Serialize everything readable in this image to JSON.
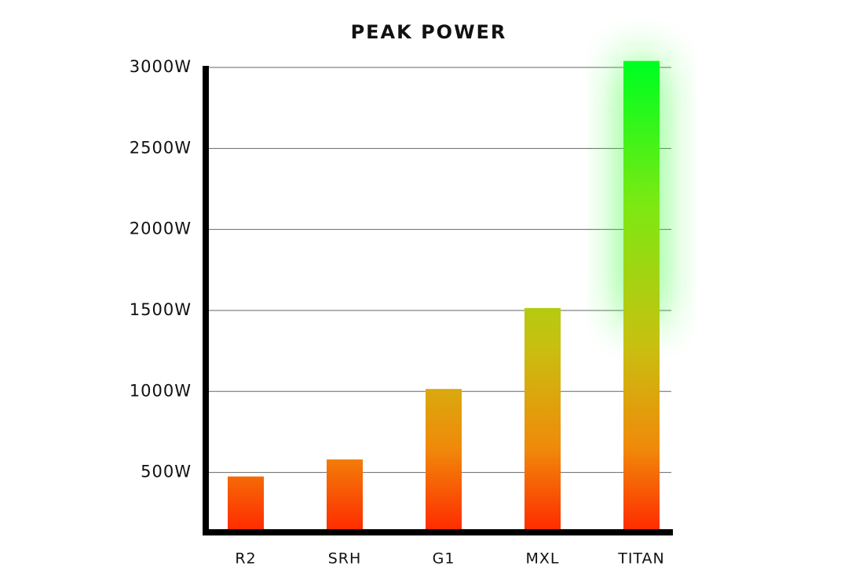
{
  "chart_data": {
    "type": "bar",
    "title": "PEAK POWER",
    "categories": [
      "R2",
      "SRH",
      "G1",
      "MXL",
      "TITAN"
    ],
    "values": [
      475,
      580,
      1015,
      1515,
      3040
    ],
    "ylim": [
      135,
      3000
    ],
    "yticks": [
      {
        "value": 500,
        "label": "500W"
      },
      {
        "value": 1000,
        "label": "1000W"
      },
      {
        "value": 1500,
        "label": "1500W"
      },
      {
        "value": 2000,
        "label": "2000W"
      },
      {
        "value": 2500,
        "label": "2500W"
      },
      {
        "value": 3000,
        "label": "3000W"
      }
    ],
    "grid": true
  }
}
